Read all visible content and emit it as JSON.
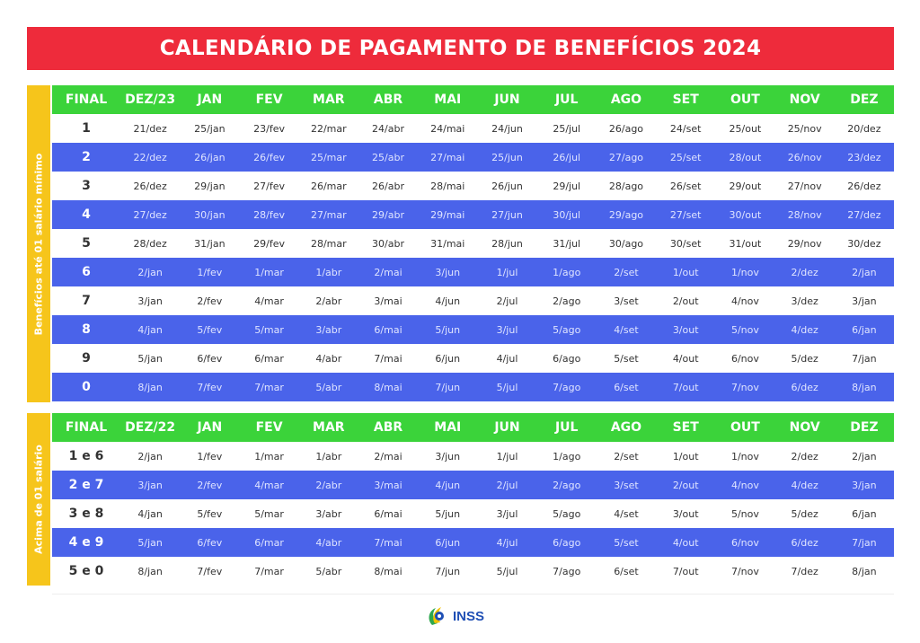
{
  "title": "CALENDÁRIO DE PAGAMENTO DE BENEFÍCIOS 2024",
  "colors": {
    "title_bg": "#ee2b3b",
    "header_bg": "#3bd33a",
    "row_blue": "#4a63ea",
    "side_band": "#f6c51b"
  },
  "logo": {
    "text": "INSS",
    "icon": "inss-logo-icon"
  },
  "tables": [
    {
      "side_label": "Benefícios até 01 salário mínimo",
      "headers": [
        "FINAL",
        "DEZ/23",
        "JAN",
        "FEV",
        "MAR",
        "ABR",
        "MAI",
        "JUN",
        "JUL",
        "AGO",
        "SET",
        "OUT",
        "NOV",
        "DEZ"
      ],
      "rows": [
        [
          "1",
          "21/dez",
          "25/jan",
          "23/fev",
          "22/mar",
          "24/abr",
          "24/mai",
          "24/jun",
          "25/jul",
          "26/ago",
          "24/set",
          "25/out",
          "25/nov",
          "20/dez"
        ],
        [
          "2",
          "22/dez",
          "26/jan",
          "26/fev",
          "25/mar",
          "25/abr",
          "27/mai",
          "25/jun",
          "26/jul",
          "27/ago",
          "25/set",
          "28/out",
          "26/nov",
          "23/dez"
        ],
        [
          "3",
          "26/dez",
          "29/jan",
          "27/fev",
          "26/mar",
          "26/abr",
          "28/mai",
          "26/jun",
          "29/jul",
          "28/ago",
          "26/set",
          "29/out",
          "27/nov",
          "26/dez"
        ],
        [
          "4",
          "27/dez",
          "30/jan",
          "28/fev",
          "27/mar",
          "29/abr",
          "29/mai",
          "27/jun",
          "30/jul",
          "29/ago",
          "27/set",
          "30/out",
          "28/nov",
          "27/dez"
        ],
        [
          "5",
          "28/dez",
          "31/jan",
          "29/fev",
          "28/mar",
          "30/abr",
          "31/mai",
          "28/jun",
          "31/jul",
          "30/ago",
          "30/set",
          "31/out",
          "29/nov",
          "30/dez"
        ],
        [
          "6",
          "2/jan",
          "1/fev",
          "1/mar",
          "1/abr",
          "2/mai",
          "3/jun",
          "1/jul",
          "1/ago",
          "2/set",
          "1/out",
          "1/nov",
          "2/dez",
          "2/jan"
        ],
        [
          "7",
          "3/jan",
          "2/fev",
          "4/mar",
          "2/abr",
          "3/mai",
          "4/jun",
          "2/jul",
          "2/ago",
          "3/set",
          "2/out",
          "4/nov",
          "3/dez",
          "3/jan"
        ],
        [
          "8",
          "4/jan",
          "5/fev",
          "5/mar",
          "3/abr",
          "6/mai",
          "5/jun",
          "3/jul",
          "5/ago",
          "4/set",
          "3/out",
          "5/nov",
          "4/dez",
          "6/jan"
        ],
        [
          "9",
          "5/jan",
          "6/fev",
          "6/mar",
          "4/abr",
          "7/mai",
          "6/jun",
          "4/jul",
          "6/ago",
          "5/set",
          "4/out",
          "6/nov",
          "5/dez",
          "7/jan"
        ],
        [
          "0",
          "8/jan",
          "7/fev",
          "7/mar",
          "5/abr",
          "8/mai",
          "7/jun",
          "5/jul",
          "7/ago",
          "6/set",
          "7/out",
          "7/nov",
          "6/dez",
          "8/jan"
        ]
      ]
    },
    {
      "side_label": "Acima de 01 salário",
      "headers": [
        "FINAL",
        "DEZ/22",
        "JAN",
        "FEV",
        "MAR",
        "ABR",
        "MAI",
        "JUN",
        "JUL",
        "AGO",
        "SET",
        "OUT",
        "NOV",
        "DEZ"
      ],
      "rows": [
        [
          "1 e 6",
          "2/jan",
          "1/fev",
          "1/mar",
          "1/abr",
          "2/mai",
          "3/jun",
          "1/jul",
          "1/ago",
          "2/set",
          "1/out",
          "1/nov",
          "2/dez",
          "2/jan"
        ],
        [
          "2 e 7",
          "3/jan",
          "2/fev",
          "4/mar",
          "2/abr",
          "3/mai",
          "4/jun",
          "2/jul",
          "2/ago",
          "3/set",
          "2/out",
          "4/nov",
          "4/dez",
          "3/jan"
        ],
        [
          "3 e 8",
          "4/jan",
          "5/fev",
          "5/mar",
          "3/abr",
          "6/mai",
          "5/jun",
          "3/jul",
          "5/ago",
          "4/set",
          "3/out",
          "5/nov",
          "5/dez",
          "6/jan"
        ],
        [
          "4 e 9",
          "5/jan",
          "6/fev",
          "6/mar",
          "4/abr",
          "7/mai",
          "6/jun",
          "4/jul",
          "6/ago",
          "5/set",
          "4/out",
          "6/nov",
          "6/dez",
          "7/jan"
        ],
        [
          "5 e 0",
          "8/jan",
          "7/fev",
          "7/mar",
          "5/abr",
          "8/mai",
          "7/jun",
          "5/jul",
          "7/ago",
          "6/set",
          "7/out",
          "7/nov",
          "7/dez",
          "8/jan"
        ]
      ]
    }
  ]
}
